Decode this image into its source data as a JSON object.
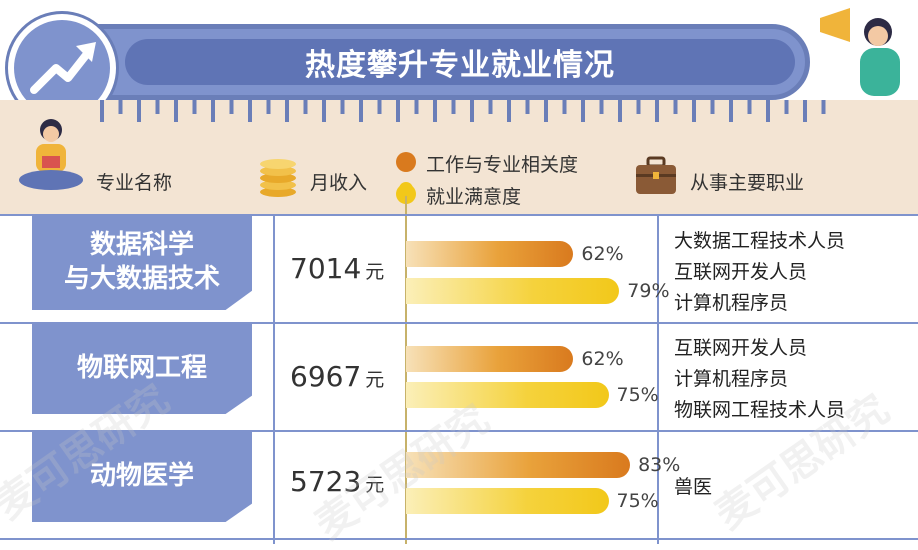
{
  "title": "热度攀升专业就业情况",
  "headers": {
    "major": "专业名称",
    "income": "月收入",
    "relevance": "工作与专业相关度",
    "satisfaction": "就业满意度",
    "jobs": "从事主要职业"
  },
  "colors": {
    "relevance": "#d97a1e",
    "satisfaction": "#f2c81a",
    "accent": "#7f93cd"
  },
  "chart_data": {
    "type": "bar",
    "categories": [
      "数据科学\n与大数据技术",
      "物联网工程",
      "动物医学"
    ],
    "series": [
      {
        "name": "工作与专业相关度",
        "values": [
          62,
          62,
          83
        ]
      },
      {
        "name": "就业满意度",
        "values": [
          79,
          75,
          75
        ]
      }
    ],
    "ylim": [
      0,
      100
    ]
  },
  "rows": [
    {
      "name": "数据科学\n与大数据技术",
      "income": "7014",
      "unit": "元",
      "relevance_label": "62%",
      "satisfaction_label": "79%",
      "jobs": [
        "大数据工程技术人员",
        "互联网开发人员",
        "计算机程序员"
      ]
    },
    {
      "name": "物联网工程",
      "income": "6967",
      "unit": "元",
      "relevance_label": "62%",
      "satisfaction_label": "75%",
      "jobs": [
        "互联网开发人员",
        "计算机程序员",
        "物联网工程技术人员"
      ]
    },
    {
      "name": "动物医学",
      "income": "5723",
      "unit": "元",
      "relevance_label": "83%",
      "satisfaction_label": "75%",
      "jobs": [
        "兽医"
      ]
    }
  ],
  "watermark": "麦可思研究"
}
